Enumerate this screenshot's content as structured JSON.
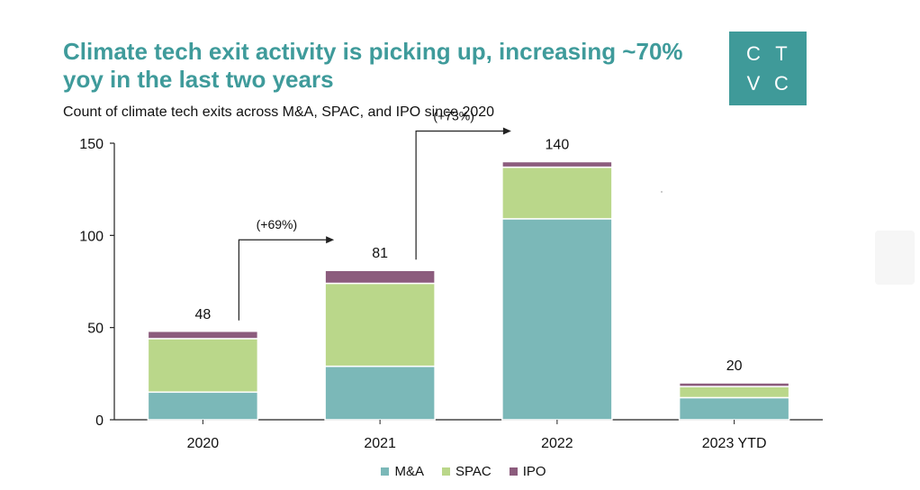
{
  "chart_data": {
    "type": "bar",
    "stacked": true,
    "title": "Climate tech exit activity is picking up, increasing ~70% yoy in the last two years",
    "subtitle": "Count of climate tech exits across M&A, SPAC, and IPO since 2020",
    "categories": [
      "2020",
      "2021",
      "2022",
      "2023 YTD"
    ],
    "series": [
      {
        "name": "M&A",
        "color": "#7bb8b8",
        "values": [
          15,
          29,
          109,
          12
        ]
      },
      {
        "name": "SPAC",
        "color": "#bad78a",
        "values": [
          29,
          45,
          28,
          6
        ]
      },
      {
        "name": "IPO",
        "color": "#8c5c7d",
        "values": [
          4,
          7,
          3,
          2
        ]
      }
    ],
    "totals": [
      48,
      81,
      140,
      20
    ],
    "yticks": [
      0,
      50,
      100,
      150
    ],
    "ylim": [
      0,
      150
    ],
    "grid": false,
    "legend_position": "bottom",
    "annotations": [
      {
        "text": "(+69%)",
        "from": "2020",
        "to": "2021"
      },
      {
        "text": "(+73%)",
        "from": "2021",
        "to": "2022"
      }
    ]
  },
  "logo": {
    "letters": [
      "C",
      "T",
      "V",
      "C"
    ]
  }
}
